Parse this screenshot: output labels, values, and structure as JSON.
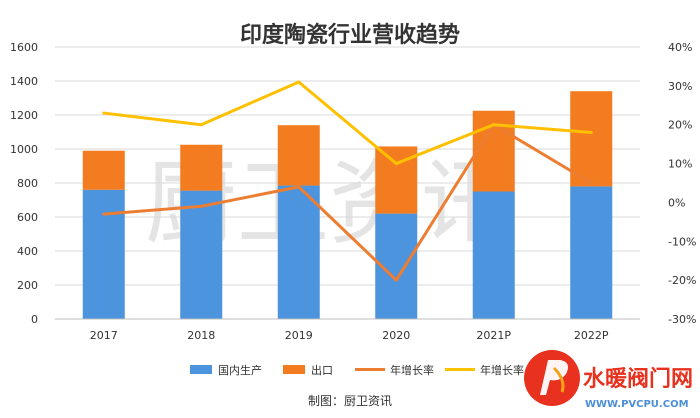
{
  "chart_data": {
    "type": "bar",
    "stacked": true,
    "title": "印度陶瓷行业营收趋势",
    "categories": [
      "2017",
      "2018",
      "2019",
      "2020",
      "2021P",
      "2022P"
    ],
    "series": [
      {
        "name": "国内生产",
        "kind": "bar",
        "axis": "left",
        "color": "#4c94de",
        "values": [
          760,
          755,
          785,
          620,
          750,
          780
        ]
      },
      {
        "name": "出口",
        "kind": "bar",
        "axis": "left",
        "color": "#f47c20",
        "values": [
          230,
          270,
          355,
          395,
          475,
          560
        ]
      },
      {
        "name": "年增长率",
        "kind": "line",
        "axis": "right",
        "color": "#ed7d31",
        "values": [
          -3,
          -1,
          4,
          -20,
          20,
          5
        ]
      },
      {
        "name": "年增长率",
        "kind": "line",
        "axis": "right",
        "color": "#ffc000",
        "values": [
          23,
          20,
          31,
          10,
          20,
          18
        ]
      }
    ],
    "left_axis": {
      "ylim": [
        0,
        1600
      ],
      "ticks": [
        0,
        200,
        400,
        600,
        800,
        1000,
        1200,
        1400,
        1600
      ]
    },
    "right_axis": {
      "ylim": [
        -30,
        40
      ],
      "ticks": [
        "-30%",
        "-20%",
        "-10%",
        "0%",
        "10%",
        "20%",
        "30%",
        "40%"
      ]
    },
    "legend_position": "bottom"
  },
  "watermark": "厨卫资讯",
  "credit": "制图：厨卫资讯",
  "logo": {
    "name": "水暖阀门网",
    "url": "WWW.PVCPU.COM"
  }
}
